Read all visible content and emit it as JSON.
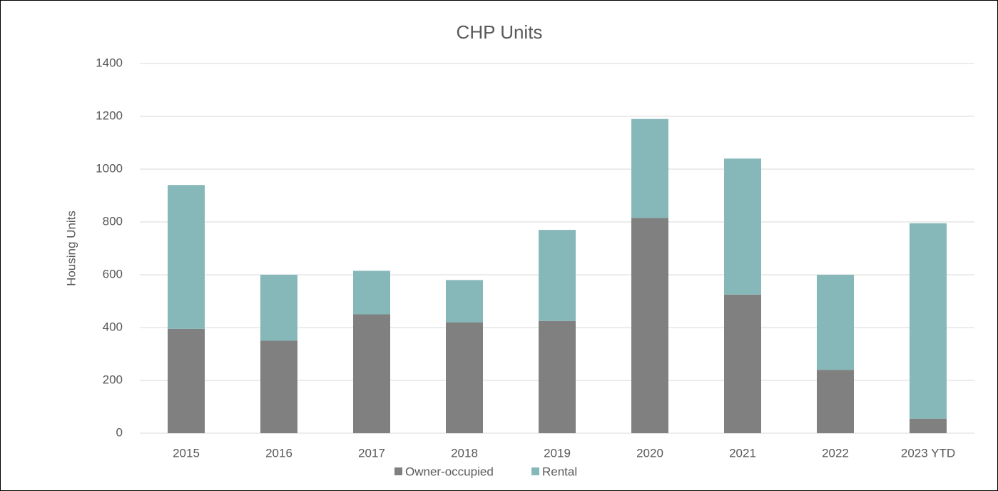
{
  "chart_data": {
    "type": "stacked_bar",
    "title": "CHP Units",
    "y_label": "Housing Units",
    "categories": [
      "2015",
      "2016",
      "2017",
      "2018",
      "2019",
      "2020",
      "2021",
      "2022",
      "2023 YTD"
    ],
    "series": [
      {
        "name": "Owner-occupied",
        "color": "#808080",
        "values": [
          395,
          350,
          450,
          420,
          425,
          815,
          525,
          240,
          55
        ]
      },
      {
        "name": "Rental",
        "color": "#86b8b9",
        "values": [
          545,
          250,
          165,
          160,
          345,
          375,
          515,
          360,
          740
        ]
      }
    ],
    "ylim": [
      0,
      1400
    ],
    "yticks": [
      0,
      200,
      400,
      600,
      800,
      1000,
      1200,
      1400
    ],
    "grid": true,
    "legend": "bottom"
  }
}
